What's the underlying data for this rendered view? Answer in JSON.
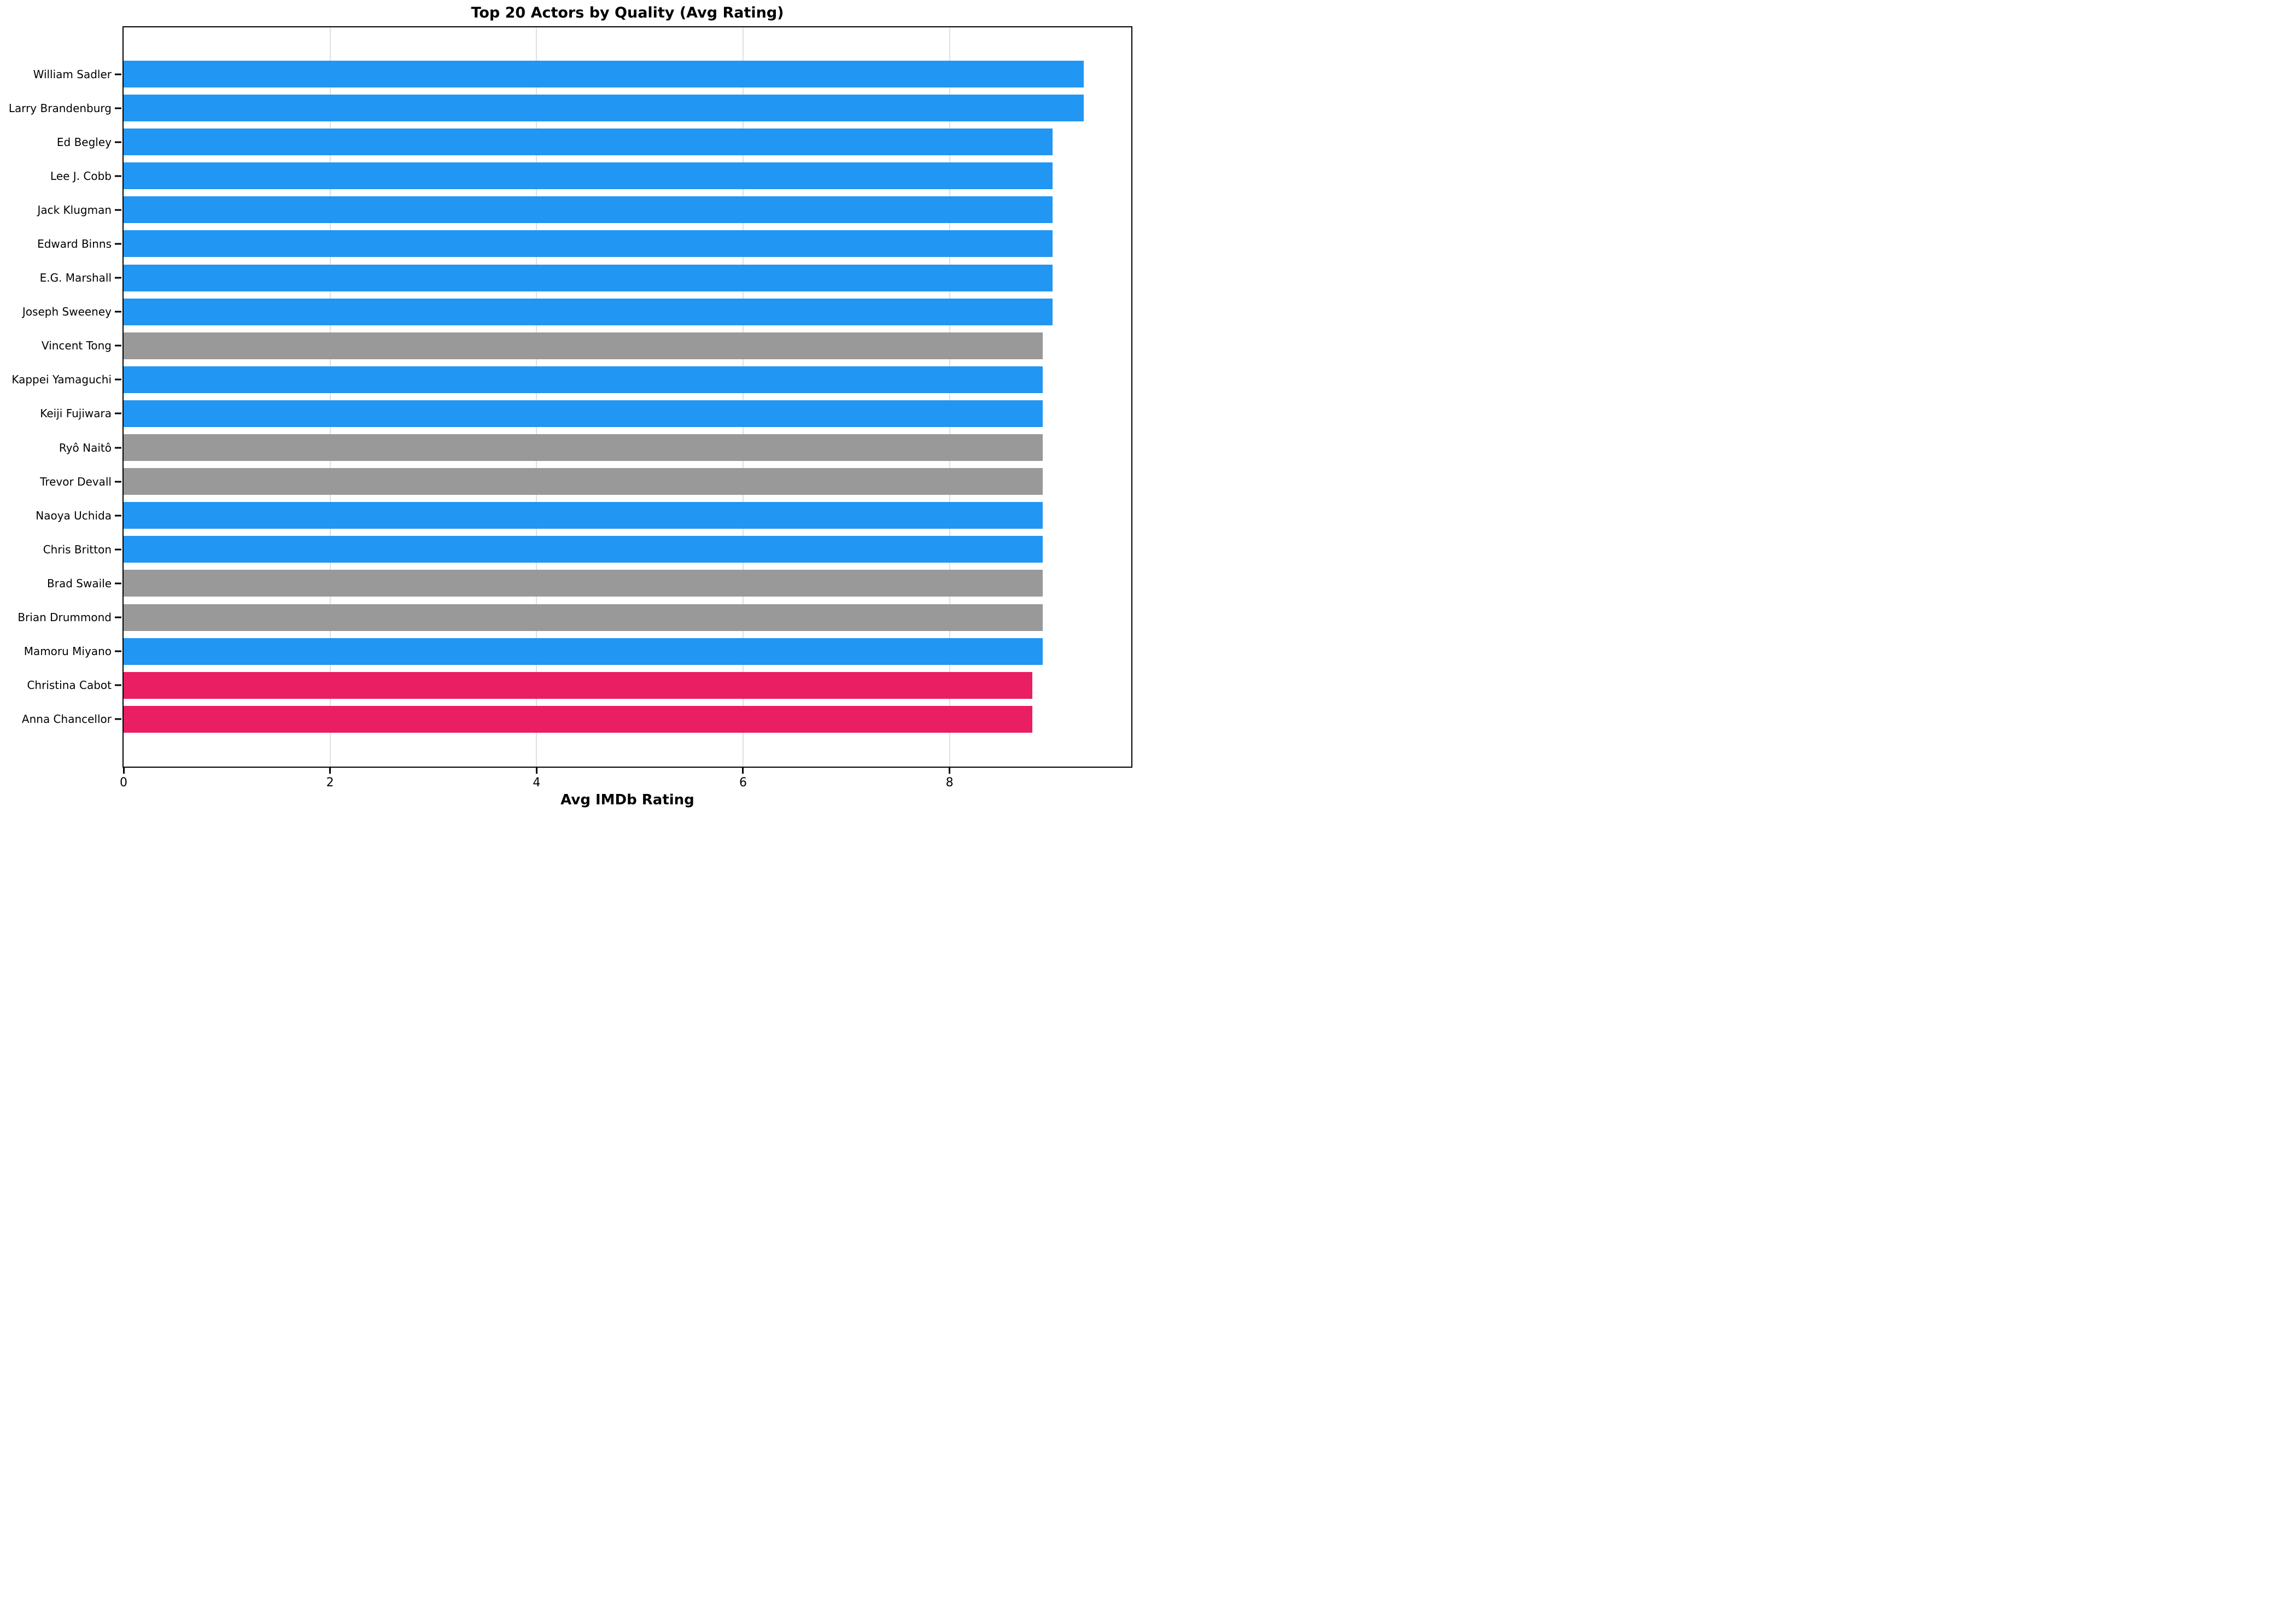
{
  "chart_data": {
    "type": "bar",
    "orientation": "horizontal",
    "title": "Top 20 Actors by Quality (Avg Rating)",
    "xlabel": "Avg IMDb Rating",
    "ylabel": "",
    "xlim": [
      0,
      9.76
    ],
    "xticks": [
      0,
      2,
      4,
      6,
      8
    ],
    "grid": true,
    "legend": false,
    "categories": [
      "William Sadler",
      "Larry Brandenburg",
      "Ed Begley",
      "Lee J. Cobb",
      "Jack Klugman",
      "Edward Binns",
      "E.G. Marshall",
      "Joseph Sweeney",
      "Vincent Tong",
      "Kappei Yamaguchi",
      "Keiji Fujiwara",
      "Ryô Naitô",
      "Trevor Devall",
      "Naoya Uchida",
      "Chris Britton",
      "Brad Swaile",
      "Brian Drummond",
      "Mamoru Miyano",
      "Christina Cabot",
      "Anna Chancellor"
    ],
    "values": [
      9.3,
      9.3,
      9.0,
      9.0,
      9.0,
      9.0,
      9.0,
      9.0,
      8.9,
      8.9,
      8.9,
      8.9,
      8.9,
      8.9,
      8.9,
      8.9,
      8.9,
      8.9,
      8.8,
      8.8
    ],
    "bar_colors": [
      "#2196F3",
      "#2196F3",
      "#2196F3",
      "#2196F3",
      "#2196F3",
      "#2196F3",
      "#2196F3",
      "#2196F3",
      "#999999",
      "#2196F3",
      "#2196F3",
      "#999999",
      "#999999",
      "#2196F3",
      "#2196F3",
      "#999999",
      "#999999",
      "#2196F3",
      "#E91E63",
      "#E91E63"
    ],
    "colors": {
      "blue": "#2196F3",
      "gray": "#999999",
      "pink": "#E91E63",
      "gridline": "#E0E0E0",
      "axis": "#000000",
      "background": "#FFFFFF"
    }
  }
}
